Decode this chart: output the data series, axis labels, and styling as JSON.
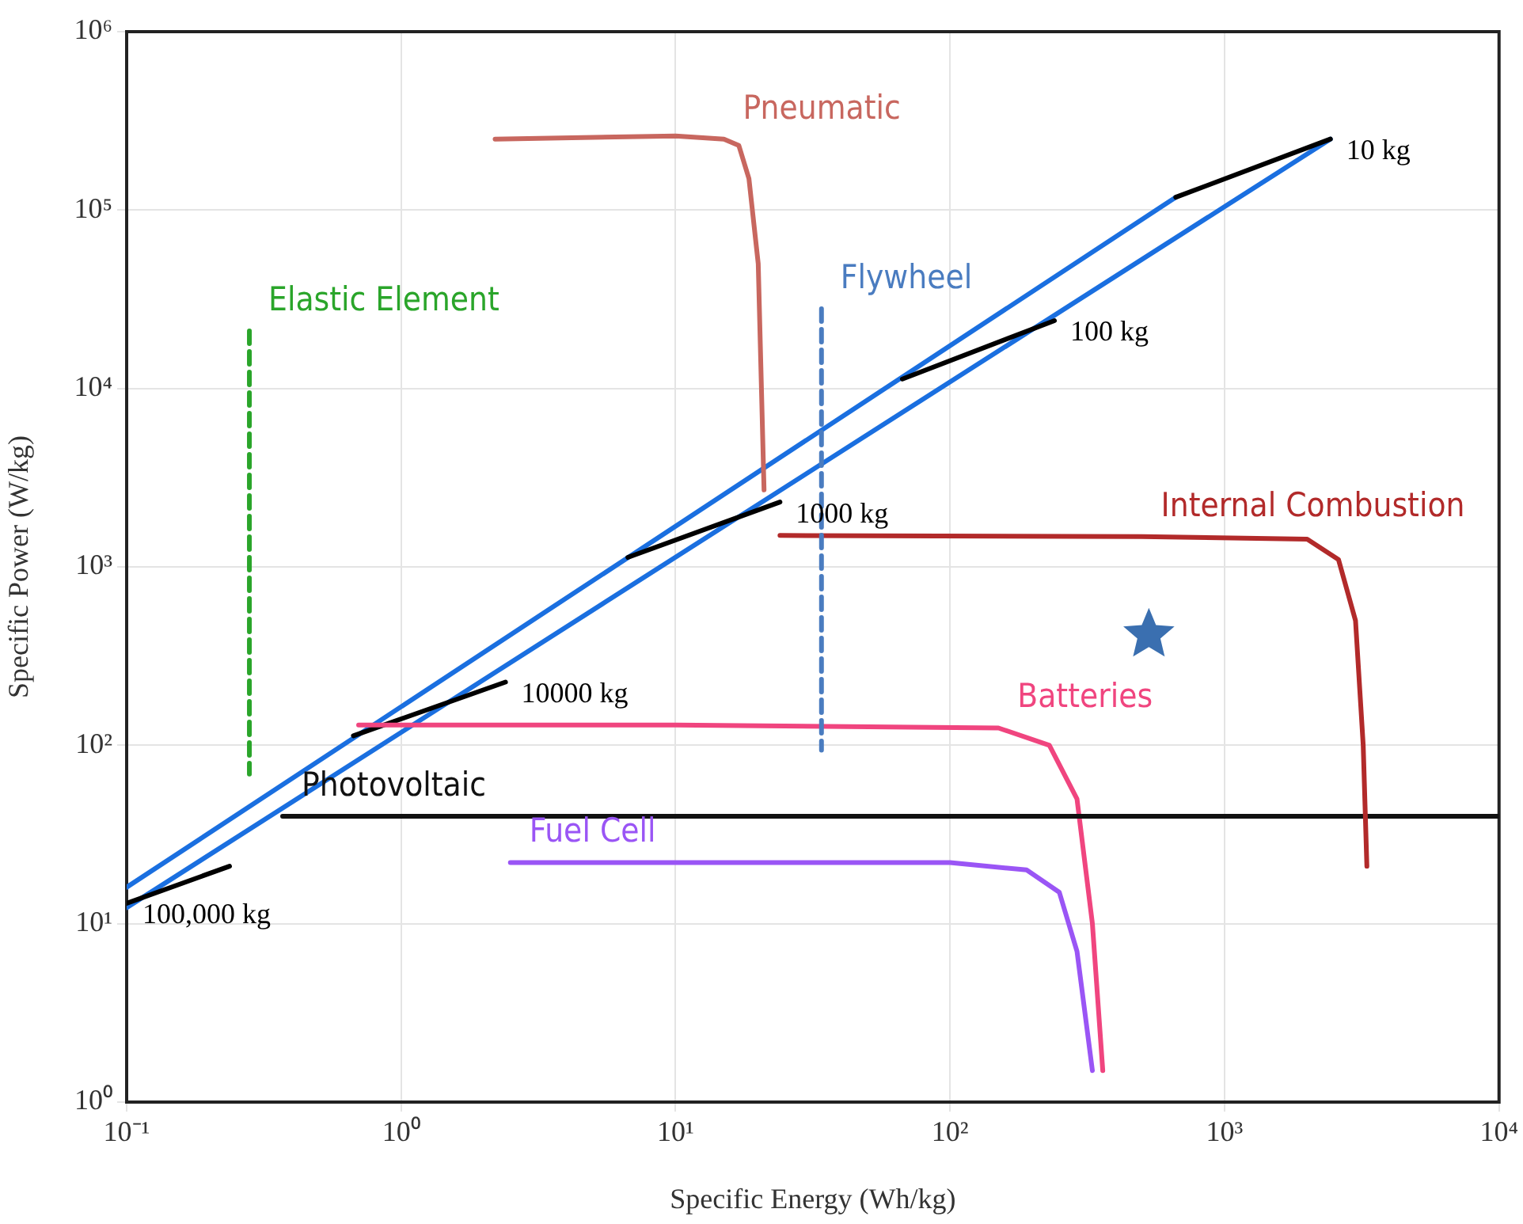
{
  "chart_data": {
    "type": "line",
    "xlabel": "Specific Energy (Wh/kg)",
    "ylabel": "Specific Power (W/kg)",
    "log": "xy",
    "grid": true,
    "legend": false,
    "marker": "none",
    "xlim": [
      0.1,
      10000
    ],
    "ylim": [
      1,
      1000000
    ],
    "xticks": [
      {
        "value": 0.1,
        "label": "10⁻¹"
      },
      {
        "value": 1,
        "label": "10⁰"
      },
      {
        "value": 10,
        "label": "10¹"
      },
      {
        "value": 100,
        "label": "10²"
      },
      {
        "value": 1000,
        "label": "10³"
      },
      {
        "value": 10000,
        "label": "10⁴"
      }
    ],
    "yticks": [
      {
        "value": 1,
        "label": "10⁰"
      },
      {
        "value": 10,
        "label": "10¹"
      },
      {
        "value": 100,
        "label": "10²"
      },
      {
        "value": 1000,
        "label": "10³"
      },
      {
        "value": 10000,
        "label": "10⁴"
      },
      {
        "value": 100000,
        "label": "10⁵"
      },
      {
        "value": 1000000,
        "label": "10⁶"
      }
    ],
    "series": [
      {
        "color": "#c8675f",
        "x": [
          2.2,
          10,
          15,
          17,
          18.5,
          20,
          21
        ],
        "values": [
          250000,
          260000,
          250000,
          230000,
          150000,
          50000,
          2700
        ]
      },
      {
        "color": "#2aa52a",
        "line_style": "dashed",
        "x": [
          0.28,
          0.28
        ],
        "values": [
          21000,
          69
        ]
      },
      {
        "color": "#4a7cc0",
        "line_style": "dashed",
        "x": [
          34,
          34
        ],
        "values": [
          28000,
          94
        ]
      },
      {
        "color": "#b22a2a",
        "x": [
          24,
          500,
          2000,
          2600,
          3000,
          3200,
          3300
        ],
        "values": [
          1500,
          1480,
          1430,
          1100,
          500,
          100,
          21
        ]
      },
      {
        "color": "#111111",
        "x": [
          0.37,
          10000
        ],
        "values": [
          40,
          40
        ]
      },
      {
        "color": "#9a55f5",
        "x": [
          2.5,
          100,
          190,
          250,
          290,
          330
        ],
        "values": [
          22,
          22,
          20,
          15,
          7,
          1.5
        ]
      },
      {
        "color": "#f0457f",
        "x": [
          0.7,
          10,
          150,
          230,
          290,
          330,
          360
        ],
        "values": [
          130,
          130,
          125,
          100,
          50,
          10,
          1.5
        ]
      },
      {
        "color": "#000000",
        "x": [
          664,
          2430
        ],
        "values": [
          118000,
          250000
        ]
      },
      {
        "color": "#000000",
        "x": [
          67,
          240
        ],
        "values": [
          11300,
          24000
        ]
      },
      {
        "color": "#000000",
        "x": [
          6.7,
          24
        ],
        "values": [
          1130,
          2310
        ]
      },
      {
        "color": "#000000",
        "x": [
          0.67,
          2.4
        ],
        "values": [
          113,
          226
        ]
      },
      {
        "color": "#000000",
        "x": [
          0.1,
          0.237
        ],
        "values": [
          13,
          21
        ]
      },
      {
        "color": "#1a6fe0",
        "x": [
          0.1,
          664
        ],
        "values": [
          16,
          118000
        ]
      },
      {
        "color": "#1a6fe0",
        "x": [
          0.1,
          2430
        ],
        "values": [
          12.3,
          250000
        ]
      },
      {
        "type": "scatter",
        "marker": "star",
        "color": "#3a6fb0",
        "x": [
          530
        ],
        "values": [
          416
        ]
      }
    ],
    "annotations": [
      {
        "text": "Pneumatic",
        "x": 15,
        "y": 250000
      },
      {
        "text": "Elastic Element",
        "x": 0.28,
        "y": 21000
      },
      {
        "text": "Flywheel",
        "x": 34,
        "y": 28000
      },
      {
        "text": "Internal Combustion",
        "x": 500,
        "y": 1480
      },
      {
        "text": "Photovoltaic",
        "x": 0.37,
        "y": 40
      },
      {
        "text": "Fuel Cell",
        "x": 2.5,
        "y": 22
      },
      {
        "text": "Batteries",
        "x": 150,
        "y": 125
      },
      {
        "text": "10 kg",
        "x": 2430,
        "y": 250000
      },
      {
        "text": "100 kg",
        "x": 240,
        "y": 24000
      },
      {
        "text": "1000 kg",
        "x": 24,
        "y": 2310
      },
      {
        "text": "10000 kg",
        "x": 2.4,
        "y": 226
      },
      {
        "text": "100,000 kg",
        "x": 0.1,
        "y": 13
      }
    ]
  }
}
